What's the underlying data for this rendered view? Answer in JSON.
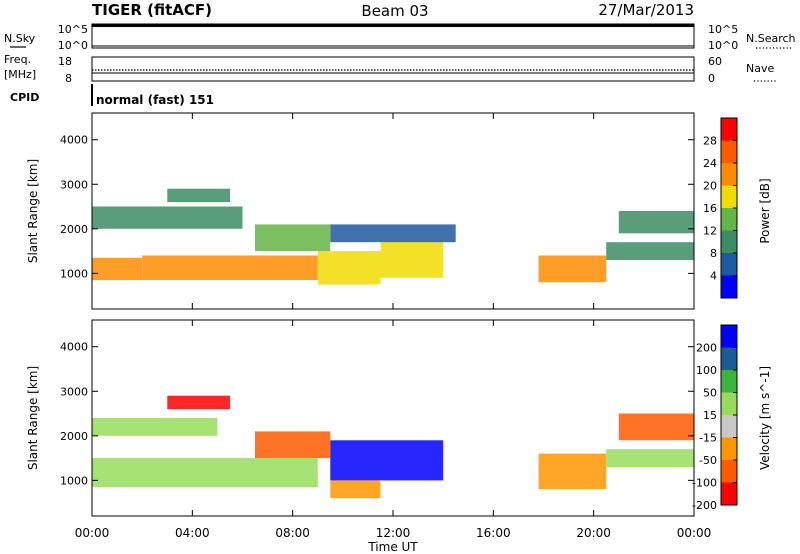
{
  "header": {
    "station": "TIGER (fitACF)",
    "beam": "Beam 03",
    "date": "27/Mar/2013"
  },
  "strip_panels": {
    "nsky": {
      "left_label": "N.Sky",
      "right_label": "N.Search",
      "left_ticks": [
        "10^5",
        "10^0"
      ],
      "right_ticks": [
        "10^5",
        "10^0"
      ]
    },
    "freq": {
      "left_label_line1": "Freq.",
      "left_label_line2": "[MHz]",
      "left_ticks": [
        "18",
        "8"
      ],
      "right_label": "Nave",
      "right_ticks": [
        "60",
        "0"
      ]
    },
    "cpid": {
      "label": "CPID",
      "text": "normal (fast) 151"
    }
  },
  "colors": {
    "power_scale": [
      "#0000ff",
      "#1e5aa0",
      "#3c8c64",
      "#64b446",
      "#f0dc00",
      "#ff8c00",
      "#ff5a00",
      "#ff0000"
    ],
    "velocity_scale": [
      "#ff0000",
      "#ff5a00",
      "#ff9600",
      "#c8c8c8",
      "#96dc5a",
      "#3cb43c",
      "#1e5a96",
      "#0000ff"
    ],
    "ground_scatter": "#c0c0c0"
  },
  "chart_data": [
    {
      "type": "heatmap",
      "name": "power",
      "xlabel": "",
      "ylabel": "Slant Range [km]",
      "x_range_hours": [
        0,
        24
      ],
      "ylim": [
        200,
        4600
      ],
      "yticks": [
        "1000",
        "2000",
        "3000",
        "4000"
      ],
      "colorbar": {
        "label": "Power [dB]",
        "range": [
          0,
          32
        ],
        "ticks": [
          "4",
          "8",
          "12",
          "16",
          "20",
          "24",
          "28"
        ]
      },
      "scatter_regions": [
        {
          "t": [
            0,
            2
          ],
          "r": [
            850,
            1350
          ],
          "value": 22
        },
        {
          "t": [
            2,
            9
          ],
          "r": [
            850,
            1400
          ],
          "value": 20
        },
        {
          "t": [
            9,
            11.5
          ],
          "r": [
            750,
            1500
          ],
          "value": 18
        },
        {
          "t": [
            11.5,
            14
          ],
          "r": [
            900,
            1700
          ],
          "value": 16
        },
        {
          "t": [
            6.5,
            9.5
          ],
          "r": [
            1500,
            2100
          ],
          "value": 12
        },
        {
          "t": [
            0,
            6
          ],
          "r": [
            2000,
            2500
          ],
          "value": 8
        },
        {
          "t": [
            9.5,
            14.5
          ],
          "r": [
            1700,
            2100
          ],
          "value": 6
        },
        {
          "t": [
            3,
            5.5
          ],
          "r": [
            2600,
            2900
          ],
          "value": 10
        },
        {
          "t": [
            17.8,
            20.5
          ],
          "r": [
            800,
            1400
          ],
          "value": 20
        },
        {
          "t": [
            20.5,
            24
          ],
          "r": [
            1300,
            1700
          ],
          "value": 8
        },
        {
          "t": [
            21,
            24
          ],
          "r": [
            1900,
            2400
          ],
          "value": 10
        }
      ]
    },
    {
      "type": "heatmap",
      "name": "velocity",
      "xlabel": "Time UT",
      "ylabel": "Slant Range [km]",
      "x_range_hours": [
        0,
        24
      ],
      "xticks": [
        "00:00",
        "04:00",
        "08:00",
        "12:00",
        "16:00",
        "20:00",
        "00:00"
      ],
      "ylim": [
        200,
        4600
      ],
      "yticks": [
        "1000",
        "2000",
        "3000",
        "4000"
      ],
      "colorbar": {
        "label": "Velocity [m s^-1]",
        "range": [
          -250,
          250
        ],
        "ticks": [
          "200",
          "100",
          "50",
          "15",
          "-15",
          "-50",
          "-100",
          "-200"
        ]
      },
      "scatter_regions": [
        {
          "t": [
            0,
            9
          ],
          "r": [
            850,
            1500
          ],
          "value": 0
        },
        {
          "t": [
            0,
            5
          ],
          "r": [
            2000,
            2400
          ],
          "value": 0
        },
        {
          "t": [
            6.5,
            9.5
          ],
          "r": [
            1500,
            2100
          ],
          "value": -150
        },
        {
          "t": [
            9.5,
            14
          ],
          "r": [
            1000,
            1900
          ],
          "value": 200
        },
        {
          "t": [
            9.5,
            11.5
          ],
          "r": [
            600,
            1000
          ],
          "value": -80
        },
        {
          "t": [
            3,
            5.5
          ],
          "r": [
            2600,
            2900
          ],
          "value": -200
        },
        {
          "t": [
            17.8,
            20.5
          ],
          "r": [
            800,
            1600
          ],
          "value": -80
        },
        {
          "t": [
            20.5,
            24
          ],
          "r": [
            1300,
            1700
          ],
          "value": 0
        },
        {
          "t": [
            21,
            24
          ],
          "r": [
            1900,
            2500
          ],
          "value": -180
        }
      ]
    }
  ]
}
